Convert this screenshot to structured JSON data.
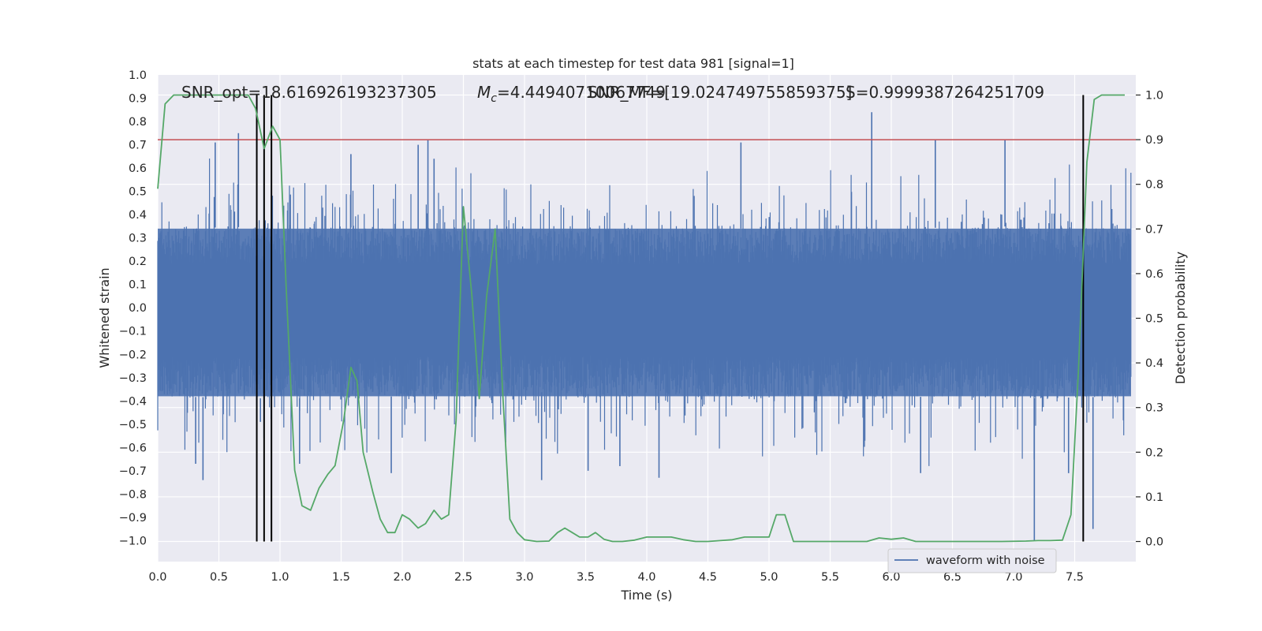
{
  "chart_data": {
    "type": "line",
    "title": "stats at each timestep for test data 981 [signal=1]",
    "xlabel": "Time (s)",
    "ylabel_left": "Whitened strain",
    "ylabel_right": "Detection probability",
    "xlim": [
      0.0,
      8.0
    ],
    "ylim_left": [
      -1.09,
      1.0
    ],
    "ylim_right": [
      -0.045,
      1.045
    ],
    "x_ticks": [
      "0.0",
      "0.5",
      "1.0",
      "1.5",
      "2.0",
      "2.5",
      "3.0",
      "3.5",
      "4.0",
      "4.5",
      "5.0",
      "5.5",
      "6.0",
      "6.5",
      "7.0",
      "7.5"
    ],
    "y_left_ticks": [
      "1.0",
      "0.9",
      "0.8",
      "0.7",
      "0.6",
      "0.5",
      "0.4",
      "0.3",
      "0.2",
      "0.1",
      "0.0",
      "−0.1",
      "−0.2",
      "−0.3",
      "−0.4",
      "−0.5",
      "−0.6",
      "−0.7",
      "−0.8",
      "−0.9",
      "−1.0"
    ],
    "y_right_ticks": [
      "1.0",
      "0.9",
      "0.8",
      "0.7",
      "0.6",
      "0.5",
      "0.4",
      "0.3",
      "0.2",
      "0.1",
      "0.0"
    ],
    "grid": true,
    "background": "#eaeaf2",
    "annotations": {
      "snr_opt": "SNR_opt=18.616926193237305",
      "mc_prefix": "M",
      "mc_sub": "c",
      "mc_suffix": "=4.44940710067749",
      "snr_mf": "SNR_MF=[19.024749755859375]",
      "s": "S=0.9999387264251709"
    },
    "legend": {
      "position": "lower-right",
      "entries": [
        "waveform with noise"
      ]
    },
    "series": [
      {
        "name": "waveform with noise",
        "color": "#4c72b0",
        "axis": "left",
        "envelope": {
          "note_units": "whitened strain",
          "band_upper": [
            [
              0.0,
              0.34
            ],
            [
              1.0,
              0.35
            ],
            [
              2.0,
              0.34
            ],
            [
              3.0,
              0.33
            ],
            [
              4.0,
              0.34
            ],
            [
              5.0,
              0.34
            ],
            [
              6.0,
              0.34
            ],
            [
              7.0,
              0.35
            ],
            [
              8.0,
              0.34
            ]
          ],
          "band_lower": [
            [
              0.0,
              -0.38
            ],
            [
              1.0,
              -0.39
            ],
            [
              2.0,
              -0.38
            ],
            [
              3.0,
              -0.36
            ],
            [
              4.0,
              -0.38
            ],
            [
              5.0,
              -0.38
            ],
            [
              6.0,
              -0.38
            ],
            [
              7.0,
              -0.39
            ],
            [
              8.0,
              -0.38
            ]
          ],
          "spikes": [
            [
              0.31,
              -0.67
            ],
            [
              0.37,
              -0.74
            ],
            [
              0.47,
              0.71
            ],
            [
              0.66,
              0.75
            ],
            [
              0.84,
              -0.49
            ],
            [
              0.93,
              -0.97
            ],
            [
              1.16,
              -0.67
            ],
            [
              1.58,
              0.66
            ],
            [
              1.91,
              -0.71
            ],
            [
              2.13,
              0.7
            ],
            [
              2.21,
              0.72
            ],
            [
              2.26,
              0.64
            ],
            [
              3.14,
              -0.74
            ],
            [
              3.52,
              -0.7
            ],
            [
              3.78,
              -0.68
            ],
            [
              4.1,
              -0.73
            ],
            [
              4.77,
              0.71
            ],
            [
              5.84,
              0.84
            ],
            [
              6.24,
              -0.71
            ],
            [
              6.36,
              0.72
            ],
            [
              6.93,
              0.72
            ],
            [
              7.17,
              -1.0
            ],
            [
              7.45,
              -0.71
            ],
            [
              7.65,
              -0.95
            ]
          ]
        }
      },
      {
        "name": "",
        "color": "#55a868",
        "axis": "right",
        "x": [
          0.0,
          0.06,
          0.13,
          0.2,
          0.3,
          0.4,
          0.5,
          0.6,
          0.7,
          0.74,
          0.8,
          0.87,
          0.94,
          1.0,
          1.05,
          1.12,
          1.18,
          1.25,
          1.32,
          1.39,
          1.45,
          1.52,
          1.58,
          1.63,
          1.68,
          1.76,
          1.82,
          1.88,
          1.94,
          2.0,
          2.06,
          2.13,
          2.19,
          2.26,
          2.32,
          2.38,
          2.44,
          2.5,
          2.57,
          2.63,
          2.69,
          2.76,
          2.82,
          2.88,
          2.94,
          3.0,
          3.1,
          3.2,
          3.27,
          3.33,
          3.39,
          3.45,
          3.52,
          3.58,
          3.65,
          3.72,
          3.8,
          3.9,
          4.0,
          4.1,
          4.2,
          4.3,
          4.4,
          4.5,
          4.6,
          4.7,
          4.8,
          4.9,
          5.0,
          5.06,
          5.13,
          5.2,
          5.26,
          5.4,
          5.6,
          5.8,
          5.9,
          6.0,
          6.1,
          6.2,
          6.3,
          6.5,
          6.7,
          6.9,
          7.1,
          7.2,
          7.3,
          7.4,
          7.47,
          7.53,
          7.6,
          7.66,
          7.72,
          7.78,
          7.85,
          7.91
        ],
        "y": [
          0.79,
          0.98,
          1.0,
          1.0,
          1.0,
          1.0,
          1.0,
          1.0,
          1.0,
          1.0,
          0.97,
          0.88,
          0.93,
          0.9,
          0.57,
          0.16,
          0.08,
          0.07,
          0.12,
          0.15,
          0.17,
          0.27,
          0.39,
          0.36,
          0.2,
          0.11,
          0.05,
          0.02,
          0.02,
          0.06,
          0.05,
          0.03,
          0.04,
          0.07,
          0.05,
          0.06,
          0.27,
          0.75,
          0.55,
          0.32,
          0.55,
          0.7,
          0.34,
          0.05,
          0.02,
          0.004,
          0.0,
          0.001,
          0.02,
          0.03,
          0.02,
          0.01,
          0.01,
          0.02,
          0.005,
          0.0,
          0.0,
          0.003,
          0.01,
          0.01,
          0.01,
          0.004,
          0.0,
          0.0,
          0.002,
          0.004,
          0.01,
          0.01,
          0.01,
          0.06,
          0.06,
          0.0,
          0.0,
          0.0,
          0.0,
          0.0,
          0.008,
          0.005,
          0.008,
          0.0,
          0.0,
          0.0,
          0.0,
          0.0,
          0.001,
          0.002,
          0.002,
          0.003,
          0.06,
          0.38,
          0.85,
          0.99,
          1.0,
          1.0,
          1.0,
          1.0
        ]
      },
      {
        "name": "",
        "color": "#c44e52",
        "axis": "right",
        "type": "hline",
        "y": 0.9
      }
    ],
    "vlines": {
      "color": "#000000",
      "x": [
        0.81,
        0.87,
        0.93,
        7.57
      ],
      "y_range_right": [
        0.0,
        1.0
      ]
    }
  }
}
